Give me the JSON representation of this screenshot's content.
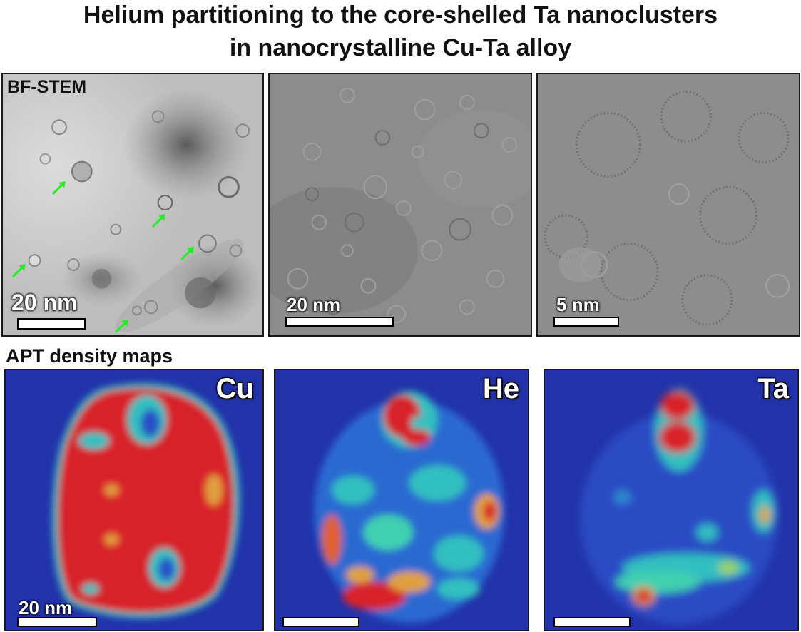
{
  "title": {
    "line1": "Helium partitioning to the core-shelled Ta nanoclusters",
    "line2": "in nanocrystalline Cu-Ta alloy"
  },
  "stem": {
    "section_label": "BF-STEM",
    "panels": [
      {
        "scale_label": "20 nm"
      },
      {
        "scale_label": "20 nm"
      },
      {
        "scale_label": "5 nm"
      }
    ],
    "arrow_color": "#22ee22"
  },
  "apt": {
    "section_label": "APT density maps",
    "panels": [
      {
        "element": "Cu",
        "scale_label": "20 nm"
      },
      {
        "element": "He",
        "scale_label": ""
      },
      {
        "element": "Ta",
        "scale_label": ""
      }
    ],
    "colors": {
      "background": "#2233aa",
      "low": "#2a50c8",
      "mid": "#33c0c0",
      "high": "#d8202a"
    }
  }
}
